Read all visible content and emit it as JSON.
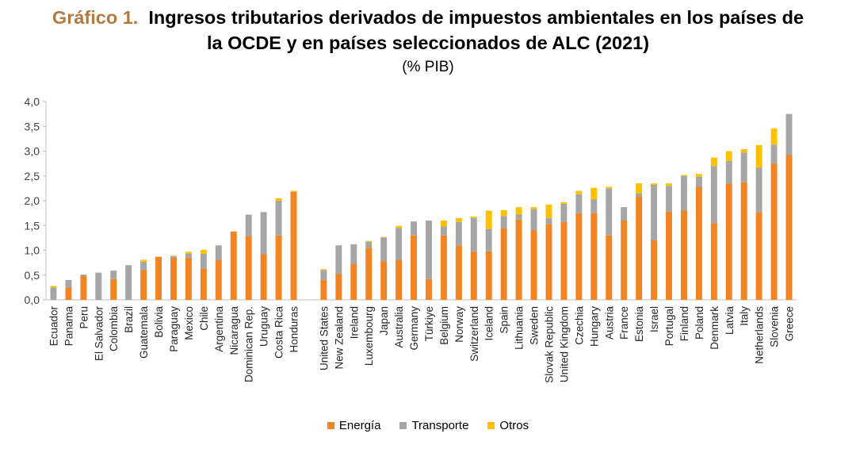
{
  "title": {
    "prefix": "Gráfico 1.",
    "line1": "Ingresos tributarios derivados de impuestos ambientales en los países de",
    "line2": "la OCDE y en países seleccionados de ALC (2021)",
    "subtitle": "(% PIB)"
  },
  "chart_data": {
    "type": "bar",
    "stacked": true,
    "ylim": [
      0,
      4.0
    ],
    "yticks": [
      "0,0",
      "0,5",
      "1,0",
      "1,5",
      "2,0",
      "2,5",
      "3,0",
      "3,5",
      "4,0"
    ],
    "grid": false,
    "legend_position": "bottom",
    "categories": [
      "Ecuador",
      "Panama",
      "Peru",
      "El Salvador",
      "Colombia",
      "Brazil",
      "Guatemala",
      "Bolivia",
      "Paraguay",
      "Mexico",
      "Chile",
      "Argentina",
      "Nicaragua",
      "Dominican Rep.",
      "Uruguay",
      "Costa Rica",
      "Honduras",
      "",
      "United States",
      "New Zealand",
      "Ireland",
      "Luxembourg",
      "Japan",
      "Australia",
      "Germany",
      "Türkiye",
      "Belgium",
      "Norway",
      "Switzerland",
      "Iceland",
      "Spain",
      "Lithuania",
      "Sweden",
      "Slovak Republic",
      "United Kingdom",
      "Czechia",
      "Hungary",
      "Austria",
      "France",
      "Estonia",
      "Israel",
      "Portugal",
      "Finland",
      "Poland",
      "Denmark",
      "Latvia",
      "Italy",
      "Netherlands",
      "Slovenia",
      "Greece"
    ],
    "series": [
      {
        "name": "Energía",
        "color": "#f28522",
        "values": [
          0.0,
          0.25,
          0.48,
          0.0,
          0.42,
          0.0,
          0.6,
          0.87,
          0.85,
          0.85,
          0.63,
          0.8,
          1.38,
          1.28,
          0.92,
          1.3,
          2.18,
          0,
          0.4,
          0.52,
          0.72,
          1.05,
          0.78,
          0.8,
          1.3,
          0.42,
          1.3,
          1.1,
          0.97,
          0.98,
          1.44,
          1.62,
          1.4,
          1.53,
          1.57,
          1.75,
          1.75,
          1.3,
          1.6,
          2.08,
          1.2,
          1.78,
          1.8,
          2.28,
          1.55,
          2.35,
          2.37,
          1.77,
          2.75,
          2.92
        ]
      },
      {
        "name": "Transporte",
        "color": "#a6a6a6",
        "values": [
          0.25,
          0.15,
          0.03,
          0.55,
          0.17,
          0.7,
          0.17,
          0.0,
          0.03,
          0.08,
          0.3,
          0.3,
          0.0,
          0.44,
          0.85,
          0.7,
          0.0,
          0,
          0.2,
          0.58,
          0.4,
          0.12,
          0.48,
          0.65,
          0.28,
          1.18,
          0.18,
          0.47,
          0.68,
          0.45,
          0.25,
          0.1,
          0.43,
          0.12,
          0.37,
          0.38,
          0.28,
          0.95,
          0.27,
          0.07,
          1.12,
          0.52,
          0.7,
          0.2,
          1.15,
          0.45,
          0.6,
          0.9,
          0.38,
          0.83
        ]
      },
      {
        "name": "Otros",
        "color": "#ffc000",
        "values": [
          0.03,
          0.0,
          0.0,
          0.0,
          0.0,
          0.0,
          0.04,
          0.0,
          0.01,
          0.04,
          0.08,
          0.0,
          0.0,
          0.0,
          0.0,
          0.05,
          0.02,
          0,
          0.02,
          0.0,
          0.0,
          0.02,
          0.01,
          0.04,
          0.0,
          0.0,
          0.12,
          0.08,
          0.03,
          0.37,
          0.12,
          0.15,
          0.04,
          0.27,
          0.03,
          0.07,
          0.23,
          0.03,
          0.0,
          0.2,
          0.03,
          0.05,
          0.02,
          0.06,
          0.17,
          0.2,
          0.07,
          0.45,
          0.33,
          0.0
        ]
      }
    ]
  }
}
